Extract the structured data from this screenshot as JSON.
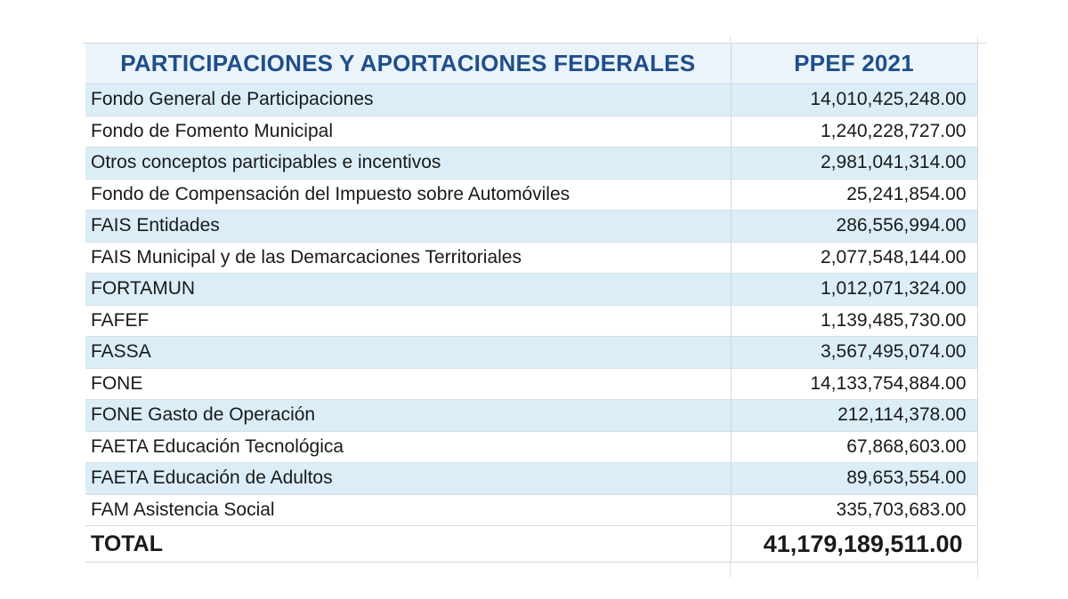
{
  "table": {
    "header": {
      "concept": "PARTICIPACIONES Y APORTACIONES FEDERALES",
      "amount": "PPEF 2021"
    },
    "rows": [
      {
        "concept": "Fondo General de Participaciones",
        "amount": "14,010,425,248.00"
      },
      {
        "concept": "Fondo de Fomento Municipal",
        "amount": "1,240,228,727.00"
      },
      {
        "concept": "Otros conceptos participables e incentivos",
        "amount": "2,981,041,314.00"
      },
      {
        "concept": "Fondo de Compensación del Impuesto sobre Automóviles",
        "amount": "25,241,854.00"
      },
      {
        "concept": "FAIS Entidades",
        "amount": "286,556,994.00"
      },
      {
        "concept": "FAIS Municipal y de las Demarcaciones Territoriales",
        "amount": "2,077,548,144.00"
      },
      {
        "concept": "FORTAMUN",
        "amount": "1,012,071,324.00"
      },
      {
        "concept": "FAFEF",
        "amount": "1,139,485,730.00"
      },
      {
        "concept": "FASSA",
        "amount": "3,567,495,074.00"
      },
      {
        "concept": "FONE",
        "amount": "14,133,754,884.00"
      },
      {
        "concept": "FONE Gasto de Operación",
        "amount": "212,114,378.00"
      },
      {
        "concept": "FAETA Educación Tecnológica",
        "amount": "67,868,603.00"
      },
      {
        "concept": "FAETA Educación de Adultos",
        "amount": "89,653,554.00"
      },
      {
        "concept": "FAM Asistencia Social",
        "amount": "335,703,683.00"
      }
    ],
    "total": {
      "label": "TOTAL",
      "amount": "41,179,189,511.00"
    }
  },
  "colors": {
    "header_text": "#1f4f8a",
    "header_bg": "#ebf3fb",
    "band_blue": "#dbeef7",
    "band_white": "#ffffff"
  }
}
